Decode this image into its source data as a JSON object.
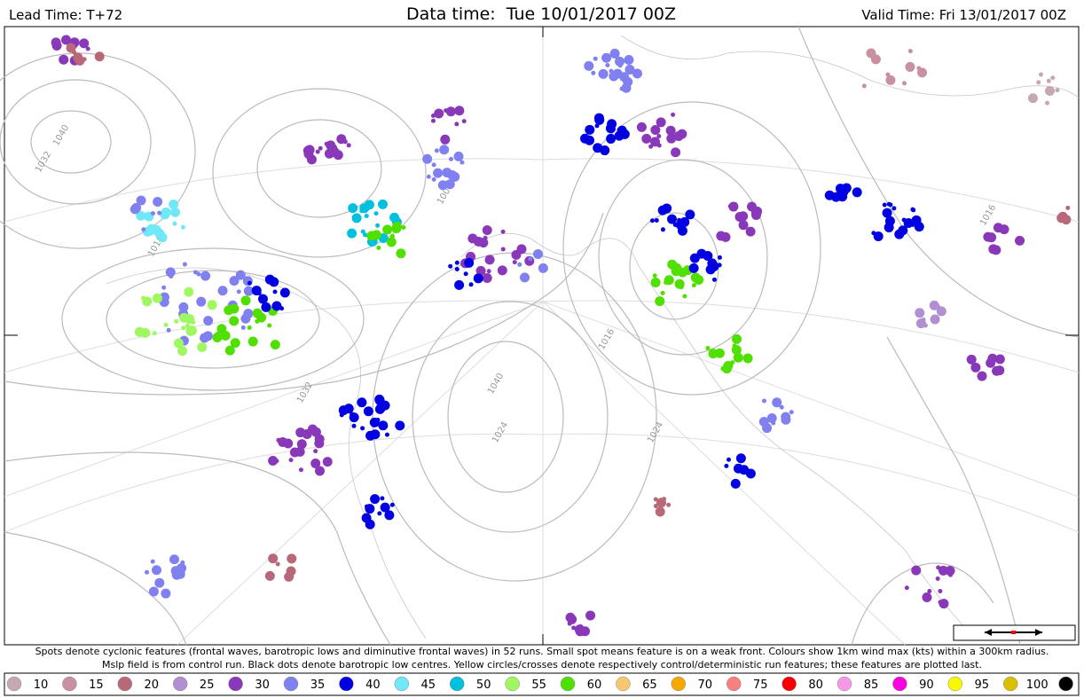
{
  "header": {
    "lead_time": "Lead Time: T+72",
    "data_time": "Data time:  Tue 10/01/2017 00Z",
    "valid_time": "Valid Time: Fri 13/01/2017 00Z"
  },
  "caption": [
    "Spots denote cyclonic features (frontal waves, barotropic lows and diminutive frontal waves) in 52 runs. Small spot means feature is on a weak front. Colours show 1km wind max (kts) within a 300km radius.",
    "Mslp field is from control run. Black dots denote barotropic low centres. Yellow circles/crosses denote respectively control/deterministic run features; these features are plotted last."
  ],
  "isobar_labels": [
    "1040",
    "1032",
    "1016",
    "1008",
    "1024",
    "1032",
    "1040",
    "1016",
    "1024",
    "1016"
  ],
  "legend": [
    {
      "value": 10,
      "color": "#c8a8b0"
    },
    {
      "value": 15,
      "color": "#c890a0"
    },
    {
      "value": 20,
      "color": "#b86878"
    },
    {
      "value": 25,
      "color": "#b090d0"
    },
    {
      "value": 30,
      "color": "#8838b8"
    },
    {
      "value": 35,
      "color": "#8080f0"
    },
    {
      "value": 40,
      "color": "#0000e0"
    },
    {
      "value": 45,
      "color": "#70e8f8"
    },
    {
      "value": 50,
      "color": "#00c0e0"
    },
    {
      "value": 55,
      "color": "#a0f860"
    },
    {
      "value": 60,
      "color": "#50e000"
    },
    {
      "value": 65,
      "color": "#f8c870"
    },
    {
      "value": 70,
      "color": "#f8a800"
    },
    {
      "value": 75,
      "color": "#f88080"
    },
    {
      "value": 80,
      "color": "#f80000"
    },
    {
      "value": 85,
      "color": "#f898e8"
    },
    {
      "value": 90,
      "color": "#f800e0"
    },
    {
      "value": 95,
      "color": "#f8f800"
    },
    {
      "value": 100,
      "color": "#d8c000"
    },
    {
      "color": "#000000"
    }
  ]
}
